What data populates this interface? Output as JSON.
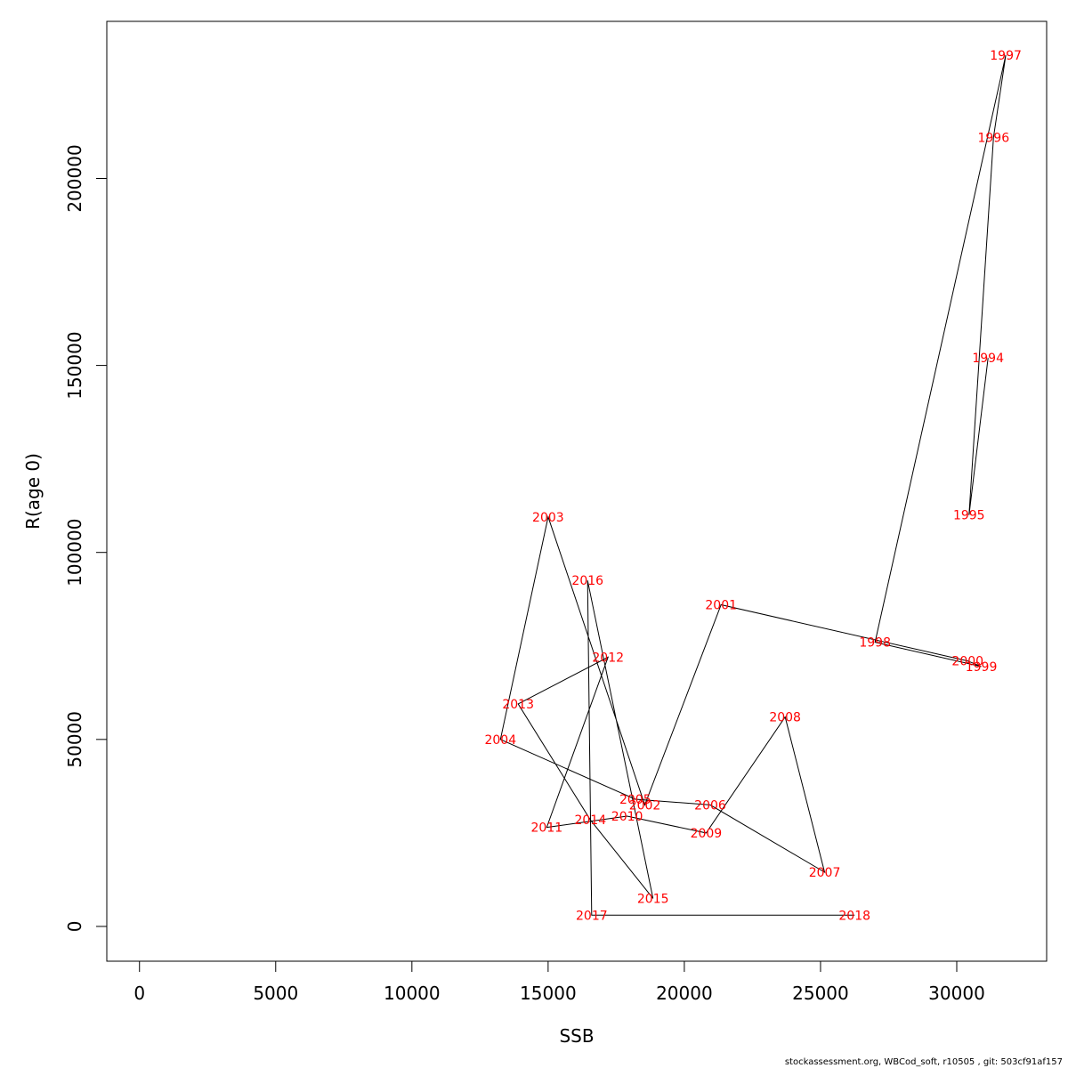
{
  "chart_data": {
    "type": "line",
    "xlabel": "SSB",
    "ylabel": "R(age 0)",
    "xlim": [
      -1200,
      33300
    ],
    "ylim": [
      -9300,
      242000
    ],
    "x_ticks": [
      0,
      5000,
      10000,
      15000,
      20000,
      25000,
      30000
    ],
    "y_ticks": [
      0,
      50000,
      100000,
      150000,
      200000
    ],
    "grid": false,
    "points": [
      {
        "label": "1994",
        "x": 31150,
        "y": 152000
      },
      {
        "label": "1995",
        "x": 30450,
        "y": 110000
      },
      {
        "label": "1996",
        "x": 31350,
        "y": 211000
      },
      {
        "label": "1997",
        "x": 31800,
        "y": 233000
      },
      {
        "label": "1998",
        "x": 27000,
        "y": 76000
      },
      {
        "label": "1999",
        "x": 30900,
        "y": 69500
      },
      {
        "label": "2000",
        "x": 30400,
        "y": 71000
      },
      {
        "label": "2001",
        "x": 21350,
        "y": 86000
      },
      {
        "label": "2002",
        "x": 18550,
        "y": 32500
      },
      {
        "label": "2003",
        "x": 15000,
        "y": 109500
      },
      {
        "label": "2004",
        "x": 13250,
        "y": 50000
      },
      {
        "label": "2005",
        "x": 18200,
        "y": 34000
      },
      {
        "label": "2006",
        "x": 20950,
        "y": 32500
      },
      {
        "label": "2007",
        "x": 25150,
        "y": 14500
      },
      {
        "label": "2008",
        "x": 23700,
        "y": 56000
      },
      {
        "label": "2009",
        "x": 20800,
        "y": 25000
      },
      {
        "label": "2010",
        "x": 17900,
        "y": 29500
      },
      {
        "label": "2011",
        "x": 14950,
        "y": 26500
      },
      {
        "label": "2012",
        "x": 17200,
        "y": 72000
      },
      {
        "label": "2013",
        "x": 13900,
        "y": 59500
      },
      {
        "label": "2014",
        "x": 16550,
        "y": 28500
      },
      {
        "label": "2015",
        "x": 18850,
        "y": 7500
      },
      {
        "label": "2016",
        "x": 16450,
        "y": 92500
      },
      {
        "label": "2017",
        "x": 16600,
        "y": 3000
      },
      {
        "label": "2018",
        "x": 26250,
        "y": 3000
      }
    ]
  },
  "footer": "stockassessment.org, WBCod_soft, r10505 , git: 503cf91af157"
}
